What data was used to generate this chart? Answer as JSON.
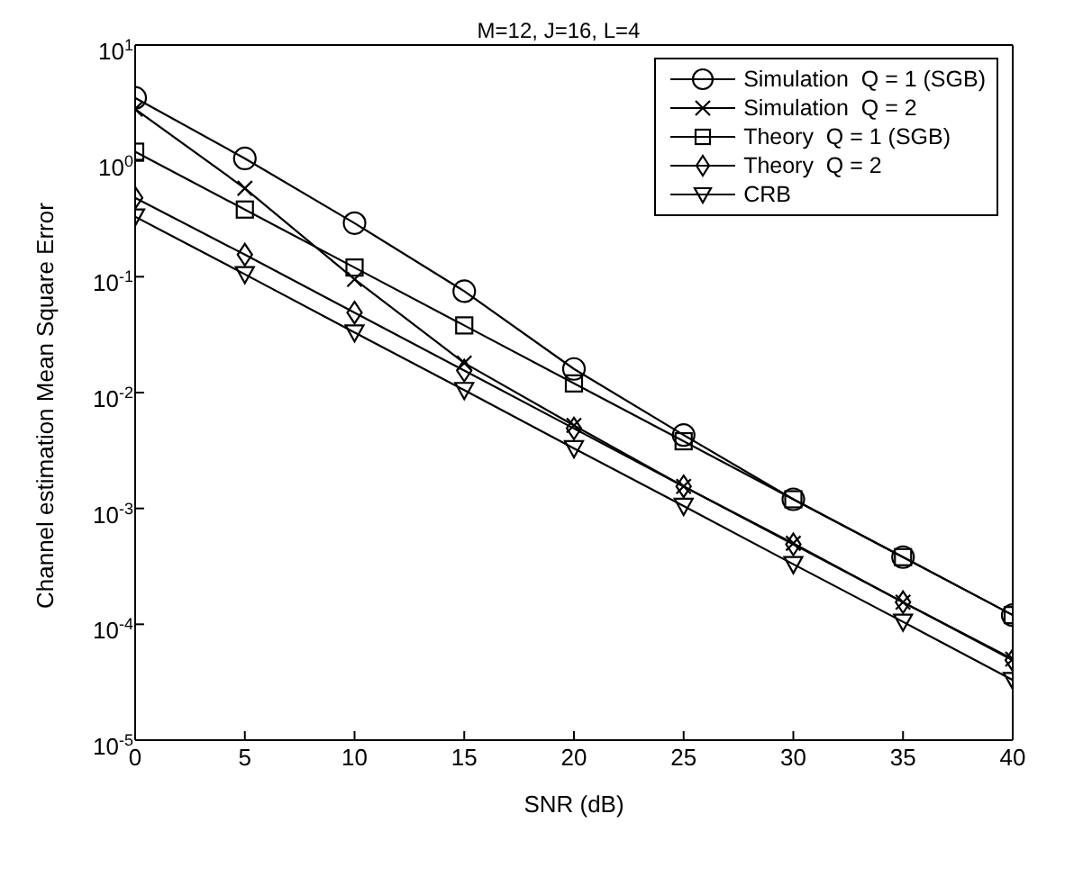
{
  "chart_data": {
    "type": "line",
    "title": "M=12, J=16, L=4",
    "xlabel": "SNR (dB)",
    "ylabel": "Channel estimation Mean Square Error",
    "x": [
      0,
      5,
      10,
      15,
      20,
      25,
      30,
      35,
      40
    ],
    "series": [
      {
        "name": "Simulation  Q = 1 (SGB)",
        "color": "#000000",
        "marker": "circle",
        "values": [
          3.5,
          1.05,
          0.29,
          0.075,
          0.016,
          0.0043,
          0.0012,
          0.00038,
          0.00012
        ]
      },
      {
        "name": "Simulation  Q = 2",
        "color": "#000000",
        "marker": "cross",
        "values": [
          2.8,
          0.58,
          0.095,
          0.018,
          0.0052,
          0.00155,
          0.0005,
          0.000155,
          5e-05
        ]
      },
      {
        "name": "Theory  Q = 1 (SGB)",
        "color": "#000000",
        "marker": "square",
        "values": [
          1.2,
          0.38,
          0.12,
          0.038,
          0.012,
          0.0038,
          0.0012,
          0.00038,
          0.00012
        ]
      },
      {
        "name": "Theory  Q = 2",
        "color": "#000000",
        "marker": "diamond",
        "values": [
          0.48,
          0.155,
          0.049,
          0.0155,
          0.0049,
          0.00155,
          0.00049,
          0.000155,
          4.9e-05
        ]
      },
      {
        "name": "CRB",
        "color": "#000000",
        "marker": "triangle",
        "values": [
          0.33,
          0.105,
          0.033,
          0.0105,
          0.0033,
          0.00105,
          0.00033,
          0.000105,
          3.3e-05
        ]
      }
    ],
    "log": "y",
    "xlim": [
      0,
      40
    ],
    "xticks": [
      0,
      5,
      10,
      15,
      20,
      25,
      30,
      35,
      40
    ],
    "ylim": [
      1e-05,
      10
    ],
    "yticks": [
      {
        "value": 1e-05,
        "label": "10$^{-5}$"
      },
      {
        "value": 0.0001,
        "label": "10$^{-4}$"
      },
      {
        "value": 0.001,
        "label": "10$^{-3}$"
      },
      {
        "value": 0.01,
        "label": "10$^{-2}$"
      },
      {
        "value": 0.1,
        "label": "10$^{-1}$"
      },
      {
        "value": 1,
        "label": "10$^{0}$"
      },
      {
        "value": 10,
        "label": "10$^{1}$"
      }
    ],
    "grid": false,
    "legend": "top right",
    "line_style": "solid"
  }
}
